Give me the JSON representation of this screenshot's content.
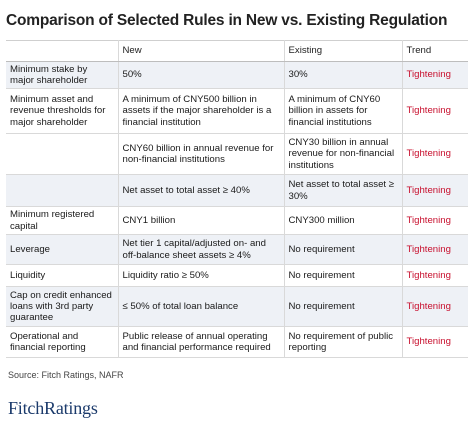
{
  "title": "Comparison of Selected Rules in New vs. Existing Regulation",
  "table": {
    "headers": [
      "",
      "New",
      "Existing",
      "Trend"
    ],
    "rows": [
      {
        "rule": "Minimum stake by major shareholder",
        "new": "50%",
        "existing": "30%",
        "trend": "Tightening"
      },
      {
        "rule": "Minimum asset and revenue thresholds for major shareholder",
        "new": "A minimum of CNY500 billion in assets if the major shareholder is a financial institution",
        "existing": "A minimum of CNY60 billion in assets for financial institutions",
        "trend": "Tightening"
      },
      {
        "rule": "",
        "new": "CNY60 billion in annual revenue for non-financial institutions",
        "existing": "CNY30 billion in annual revenue for non-financial institutions",
        "trend": "Tightening"
      },
      {
        "rule": "",
        "new": "Net asset to total asset ≥ 40%",
        "existing": "Net asset to total asset ≥ 30%",
        "trend": "Tightening"
      },
      {
        "rule": "Minimum registered capital",
        "new": "CNY1 billion",
        "existing": "CNY300 million",
        "trend": "Tightening"
      },
      {
        "rule": "Leverage",
        "new": "Net tier 1 capital/adjusted on- and off-balance sheet assets ≥ 4%",
        "existing": "No requirement",
        "trend": "Tightening"
      },
      {
        "rule": "Liquidity",
        "new": "Liquidity ratio ≥ 50%",
        "existing": "No requirement",
        "trend": "Tightening"
      },
      {
        "rule": "Cap on credit enhanced loans with 3rd party guarantee",
        "new": "≤ 50% of total loan balance",
        "existing": "No requirement",
        "trend": "Tightening"
      },
      {
        "rule": "Operational and financial reporting",
        "new": "Public release of annual operating and financial performance required",
        "existing": "No requirement of public reporting",
        "trend": "Tightening"
      }
    ]
  },
  "source": "Source: Fitch Ratings, NAFR",
  "logo": {
    "part1": "Fitch",
    "part2": "Ratings"
  }
}
